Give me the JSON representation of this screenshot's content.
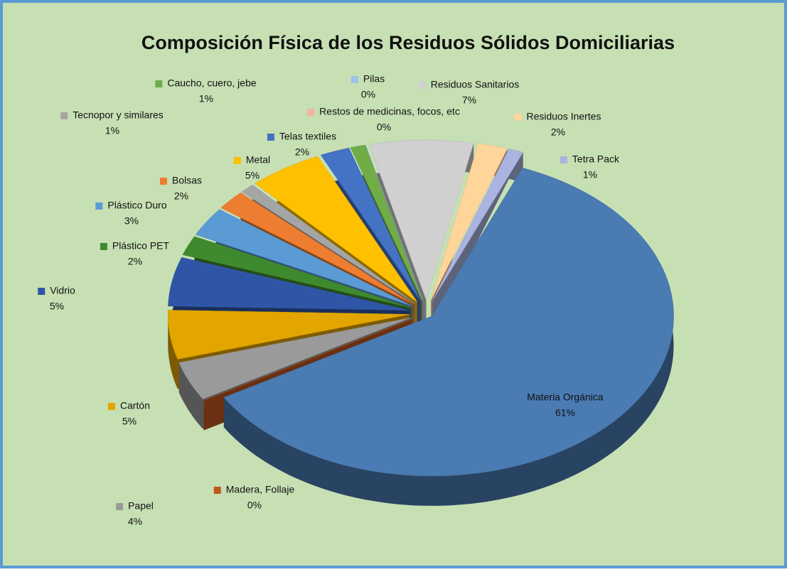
{
  "chart_data": {
    "type": "pie",
    "title": "Composición Física de los Residuos Sólidos Domiciliarias",
    "categories": [
      "Materia Orgánica",
      "Madera, Follaje",
      "Papel",
      "Cartón",
      "Vidrio",
      "Plástico PET",
      "Plástico Duro",
      "Bolsas",
      "Tecnopor y similares",
      "Metal",
      "Telas textiles",
      "Caucho, cuero, jebe",
      "Restos de medicinas, focos, etc",
      "Pilas",
      "Residuos Sanitarios",
      "Residuos Inertes",
      "Tetra Pack"
    ],
    "values": [
      61,
      0,
      4,
      5,
      5,
      2,
      3,
      2,
      1,
      5,
      2,
      1,
      0,
      0,
      7,
      2,
      1
    ],
    "value_labels": [
      "61%",
      "0%",
      "4%",
      "5%",
      "5%",
      "2%",
      "3%",
      "2%",
      "1%",
      "5%",
      "2%",
      "1%",
      "0%",
      "0%",
      "7%",
      "2%",
      "1%"
    ],
    "colors": [
      "#4a7bb3",
      "#c0581f",
      "#9a9a9a",
      "#e3a600",
      "#2f56a6",
      "#3f8a2e",
      "#5b9bd5",
      "#ed7d31",
      "#a5a5a5",
      "#ffc000",
      "#4472c4",
      "#70ad47",
      "#f4b3a3",
      "#9dc3e6",
      "#d0d0d0",
      "#ffd59a",
      "#a9b4e0"
    ]
  }
}
